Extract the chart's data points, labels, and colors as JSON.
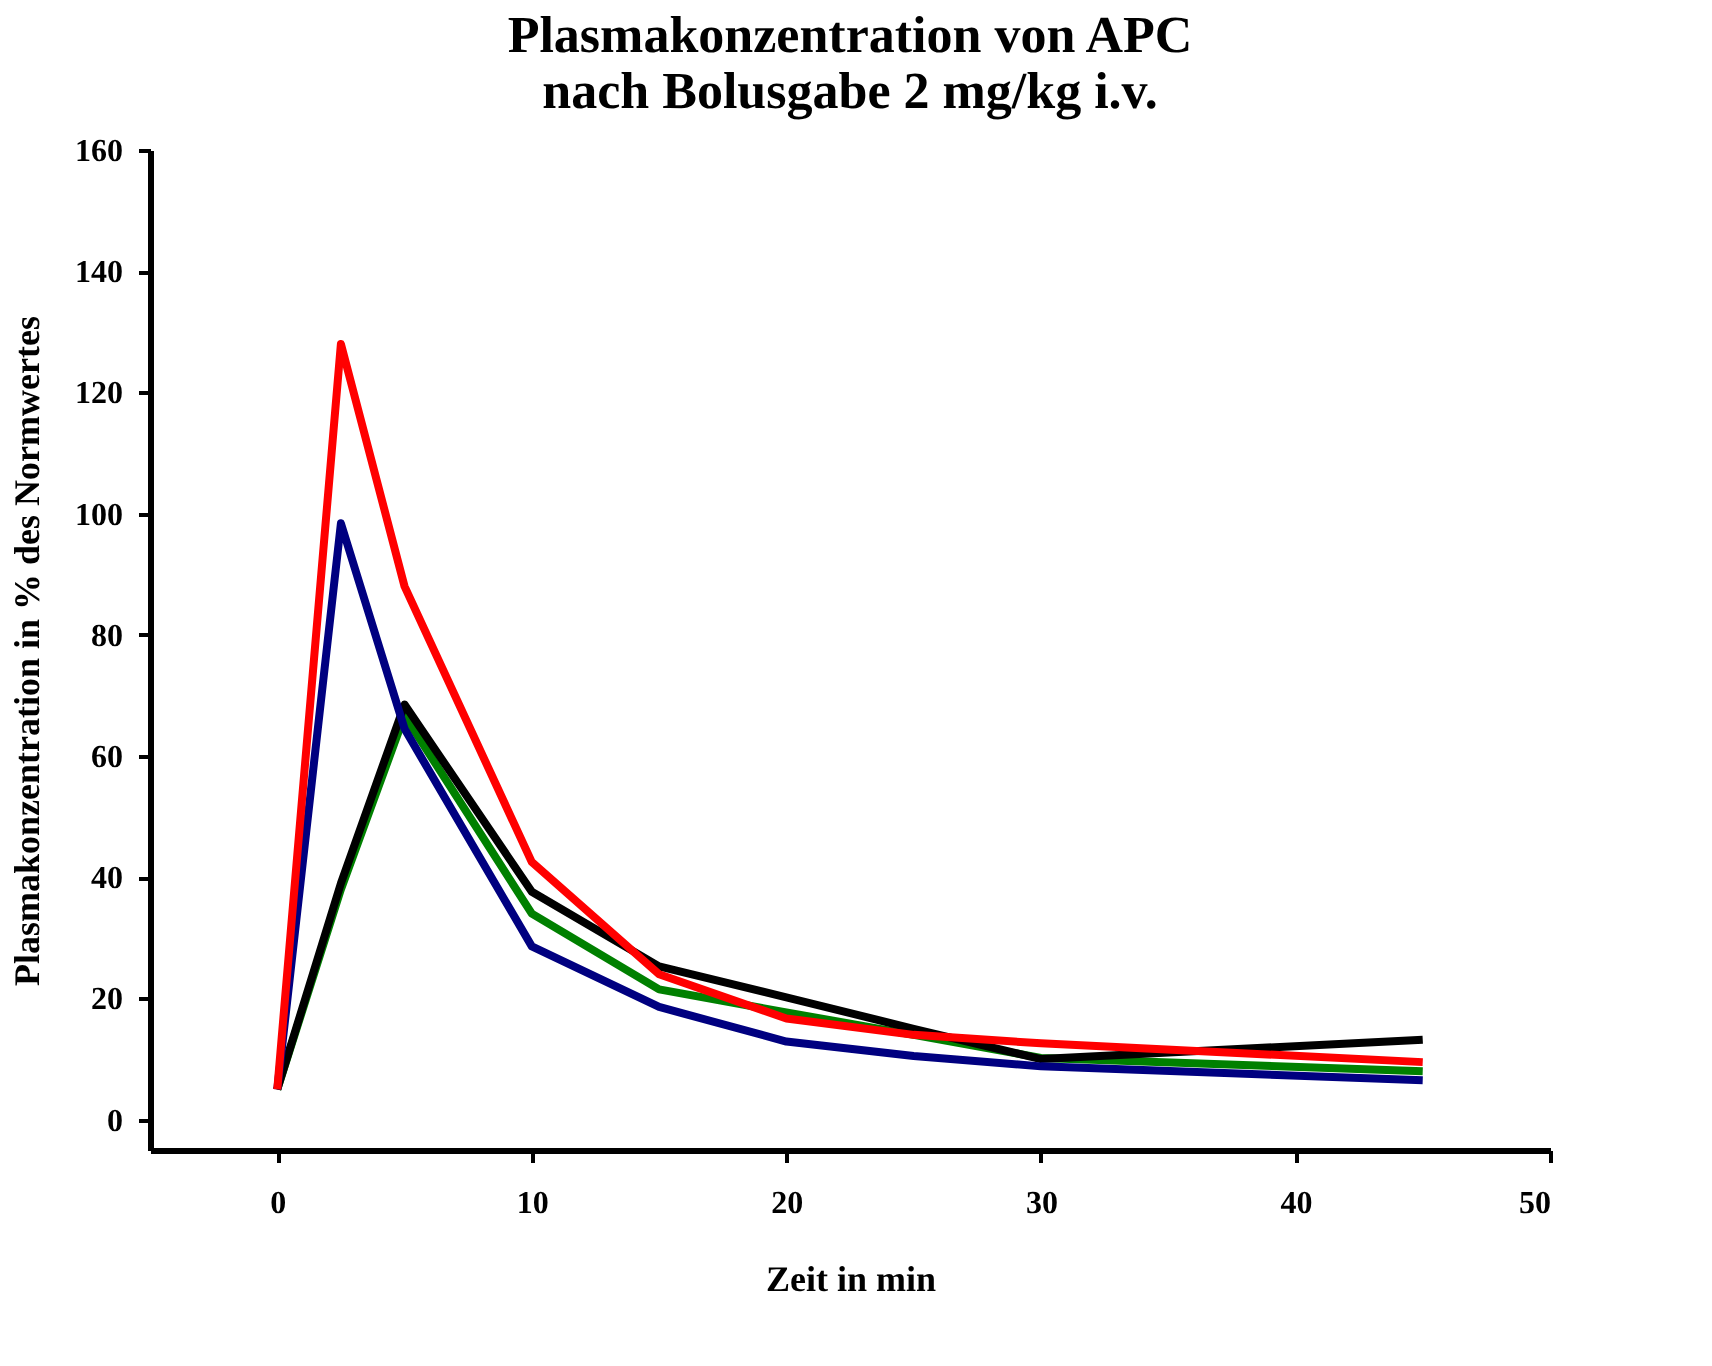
{
  "chart_data": {
    "type": "line",
    "title": [
      "Plasmakonzentration von APC",
      "nach Bolusgabe 2 mg/kg i.v."
    ],
    "xlabel": "Zeit in min",
    "ylabel": "Plasmakonzentration in % des Normwertes",
    "x": [
      0,
      2.5,
      5,
      10,
      15,
      20,
      25,
      30,
      45
    ],
    "series": [
      {
        "color": "#008000",
        "values": [
          5,
          38,
          66.7,
          34,
          21.5,
          17.7,
          14,
          10.2,
          8
        ]
      },
      {
        "color": "#000000",
        "values": [
          5,
          39,
          68.5,
          37.6,
          25.3,
          20.2,
          15,
          10,
          13.2
        ]
      },
      {
        "color": "#000080",
        "values": [
          5,
          98.4,
          64.5,
          28.6,
          18.6,
          12.9,
          10.5,
          8.8,
          6.5
        ]
      },
      {
        "color": "#ff0000",
        "values": [
          5,
          128,
          88,
          42.5,
          24,
          16.7,
          14,
          12.6,
          9.5
        ]
      }
    ],
    "xlim": [
      -5,
      50
    ],
    "xticks": [
      0,
      10,
      20,
      30,
      40,
      50
    ],
    "ylim": [
      -5,
      160
    ],
    "yticks": [
      0,
      20,
      40,
      60,
      80,
      100,
      120,
      140,
      160
    ],
    "grid": false,
    "marker": "none",
    "line_style": "solid"
  }
}
